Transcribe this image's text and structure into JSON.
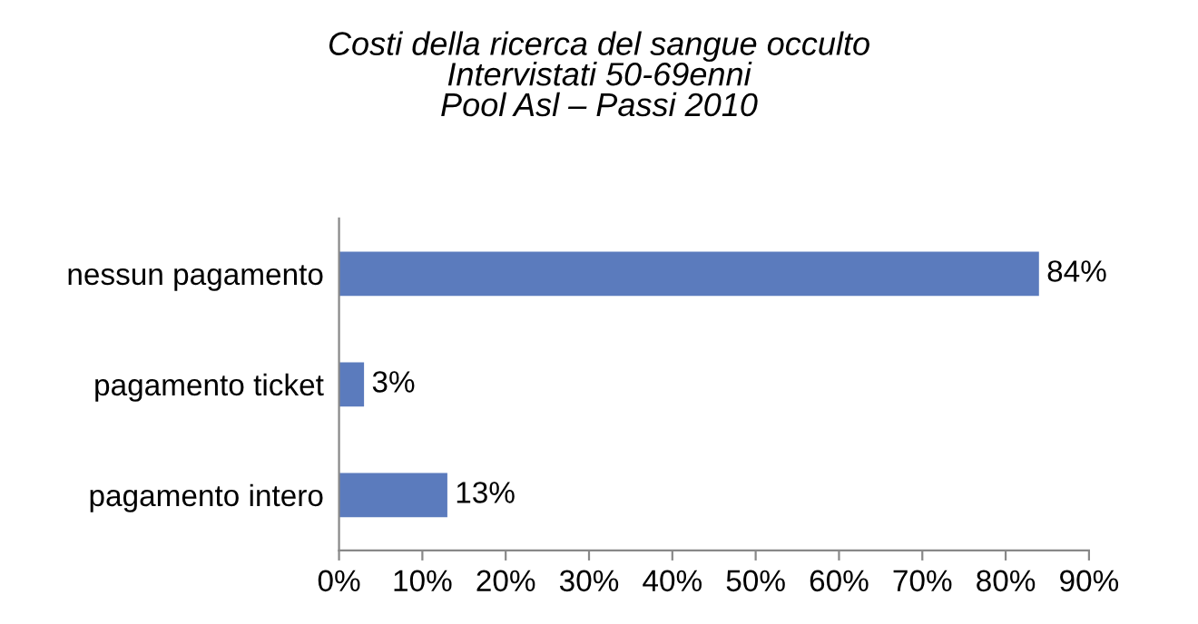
{
  "chart_data": {
    "type": "bar",
    "orientation": "horizontal",
    "title": "Costi della ricerca del sangue occulto\nIntervistati 50-69enni\nPool Asl – Passi 2010",
    "categories": [
      "nessun pagamento",
      "pagamento ticket",
      "pagamento intero"
    ],
    "values": [
      84,
      3,
      13
    ],
    "value_labels": [
      "84%",
      "3%",
      "13%"
    ],
    "color": "#5b7bbd",
    "xlim": [
      0,
      90
    ],
    "xticks": [
      {
        "value": 0,
        "label": "0%"
      },
      {
        "value": 10,
        "label": "10%"
      },
      {
        "value": 20,
        "label": "20%"
      },
      {
        "value": 30,
        "label": "30%"
      },
      {
        "value": 40,
        "label": "40%"
      },
      {
        "value": 50,
        "label": "50%"
      },
      {
        "value": 60,
        "label": "60%"
      },
      {
        "value": 70,
        "label": "70%"
      },
      {
        "value": 80,
        "label": "80%"
      },
      {
        "value": 90,
        "label": "90%"
      }
    ],
    "grid": false,
    "legend": false
  }
}
